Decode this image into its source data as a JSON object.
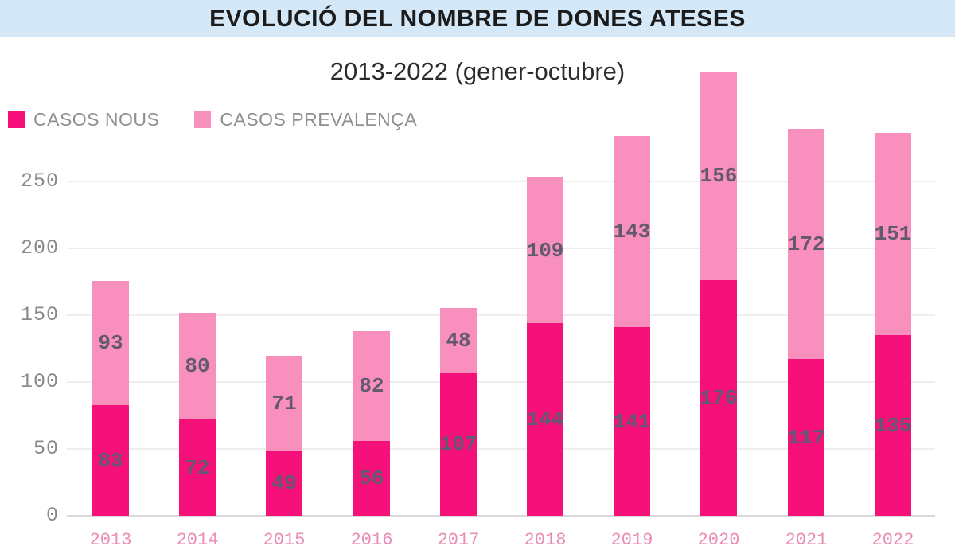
{
  "banner": {
    "title": "EVOLUCIÓ DEL NOMBRE DE DONES ATESES",
    "bg_color": "#d4e8f8"
  },
  "subtitle": "2013-2022 (gener-octubre)",
  "legend": [
    {
      "label": "CASOS NOUS",
      "color": "#f5107a"
    },
    {
      "label": "CASOS PREVALENÇA",
      "color": "#f98fbc"
    }
  ],
  "colors": {
    "casos_nous": "#f5107a",
    "casos_prevalenca": "#f98fbc",
    "banner_bg": "#d4e8f8",
    "value_label": "#615a6e",
    "axis_label": "#8a8a8a",
    "gridline": "#eeeeee"
  },
  "chart_data": {
    "type": "bar",
    "stacked": true,
    "title": "EVOLUCIÓ DEL NOMBRE DE DONES ATESES",
    "subtitle": "2013-2022 (gener-octubre)",
    "categories": [
      "2013",
      "2014",
      "2015",
      "2016",
      "2017",
      "2018",
      "2019",
      "2020",
      "2021",
      "2022"
    ],
    "series": [
      {
        "name": "CASOS NOUS",
        "color": "#f5107a",
        "values": [
          83,
          72,
          49,
          56,
          107,
          144,
          141,
          176,
          117,
          135
        ]
      },
      {
        "name": "CASOS PREVALENÇA",
        "color": "#f98fbc",
        "values": [
          93,
          80,
          71,
          82,
          48,
          109,
          143,
          156,
          172,
          151
        ]
      }
    ],
    "totals": [
      176,
      152,
      120,
      138,
      155,
      253,
      284,
      332,
      289,
      286
    ],
    "xlabel": "",
    "ylabel": "",
    "yticks": [
      0,
      50,
      100,
      150,
      200,
      250
    ],
    "ylim": [
      0,
      340
    ],
    "grid": true,
    "legend_position": "top-left",
    "bar_value_labels": true
  }
}
